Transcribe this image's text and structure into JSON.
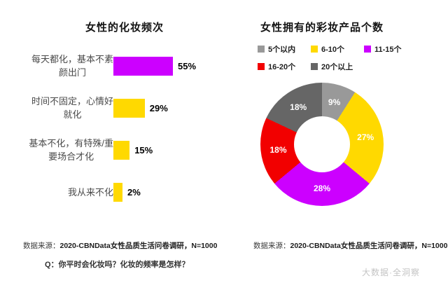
{
  "chart_data": [
    {
      "type": "bar",
      "orientation": "horizontal",
      "title": "女性的化妆频次",
      "categories": [
        "每天都化，基本不素\n颜出门",
        "时间不固定，心情好\n就化",
        "基本不化，有特殊/重\n要场合才化",
        "我从来不化"
      ],
      "values": [
        55,
        29,
        15,
        2
      ],
      "value_labels": [
        "55%",
        "29%",
        "15%",
        "2%"
      ],
      "bar_colors": [
        "#cc00ff",
        "#ffd900",
        "#ffd900",
        "#ffd900"
      ],
      "xlim": [
        0,
        60
      ],
      "grid": false
    },
    {
      "type": "pie",
      "donut": true,
      "title": "女性拥有的彩妆产品个数",
      "categories": [
        "5个以内",
        "6-10个",
        "11-15个",
        "16-20个",
        "20个以上"
      ],
      "values": [
        9,
        27,
        28,
        18,
        18
      ],
      "slice_labels": [
        "9%",
        "27%",
        "28%",
        "18%",
        "18%"
      ],
      "colors": [
        "#999999",
        "#ffd900",
        "#cc00ff",
        "#f20000",
        "#666666"
      ],
      "legend_position": "top",
      "start_angle": "top",
      "direction": "clockwise"
    }
  ],
  "footer": {
    "left_source_prefix": "数据来源：",
    "left_source": "2020-CBNData女性品质生活问卷调研，N=1000",
    "question": "Q：你平时会化妆吗？化妆的频率是怎样？",
    "right_source_prefix": "数据来源：",
    "right_source": "2020-CBNData女性品质生活问卷调研，N=1000"
  },
  "watermark": "大数据·全洞察"
}
